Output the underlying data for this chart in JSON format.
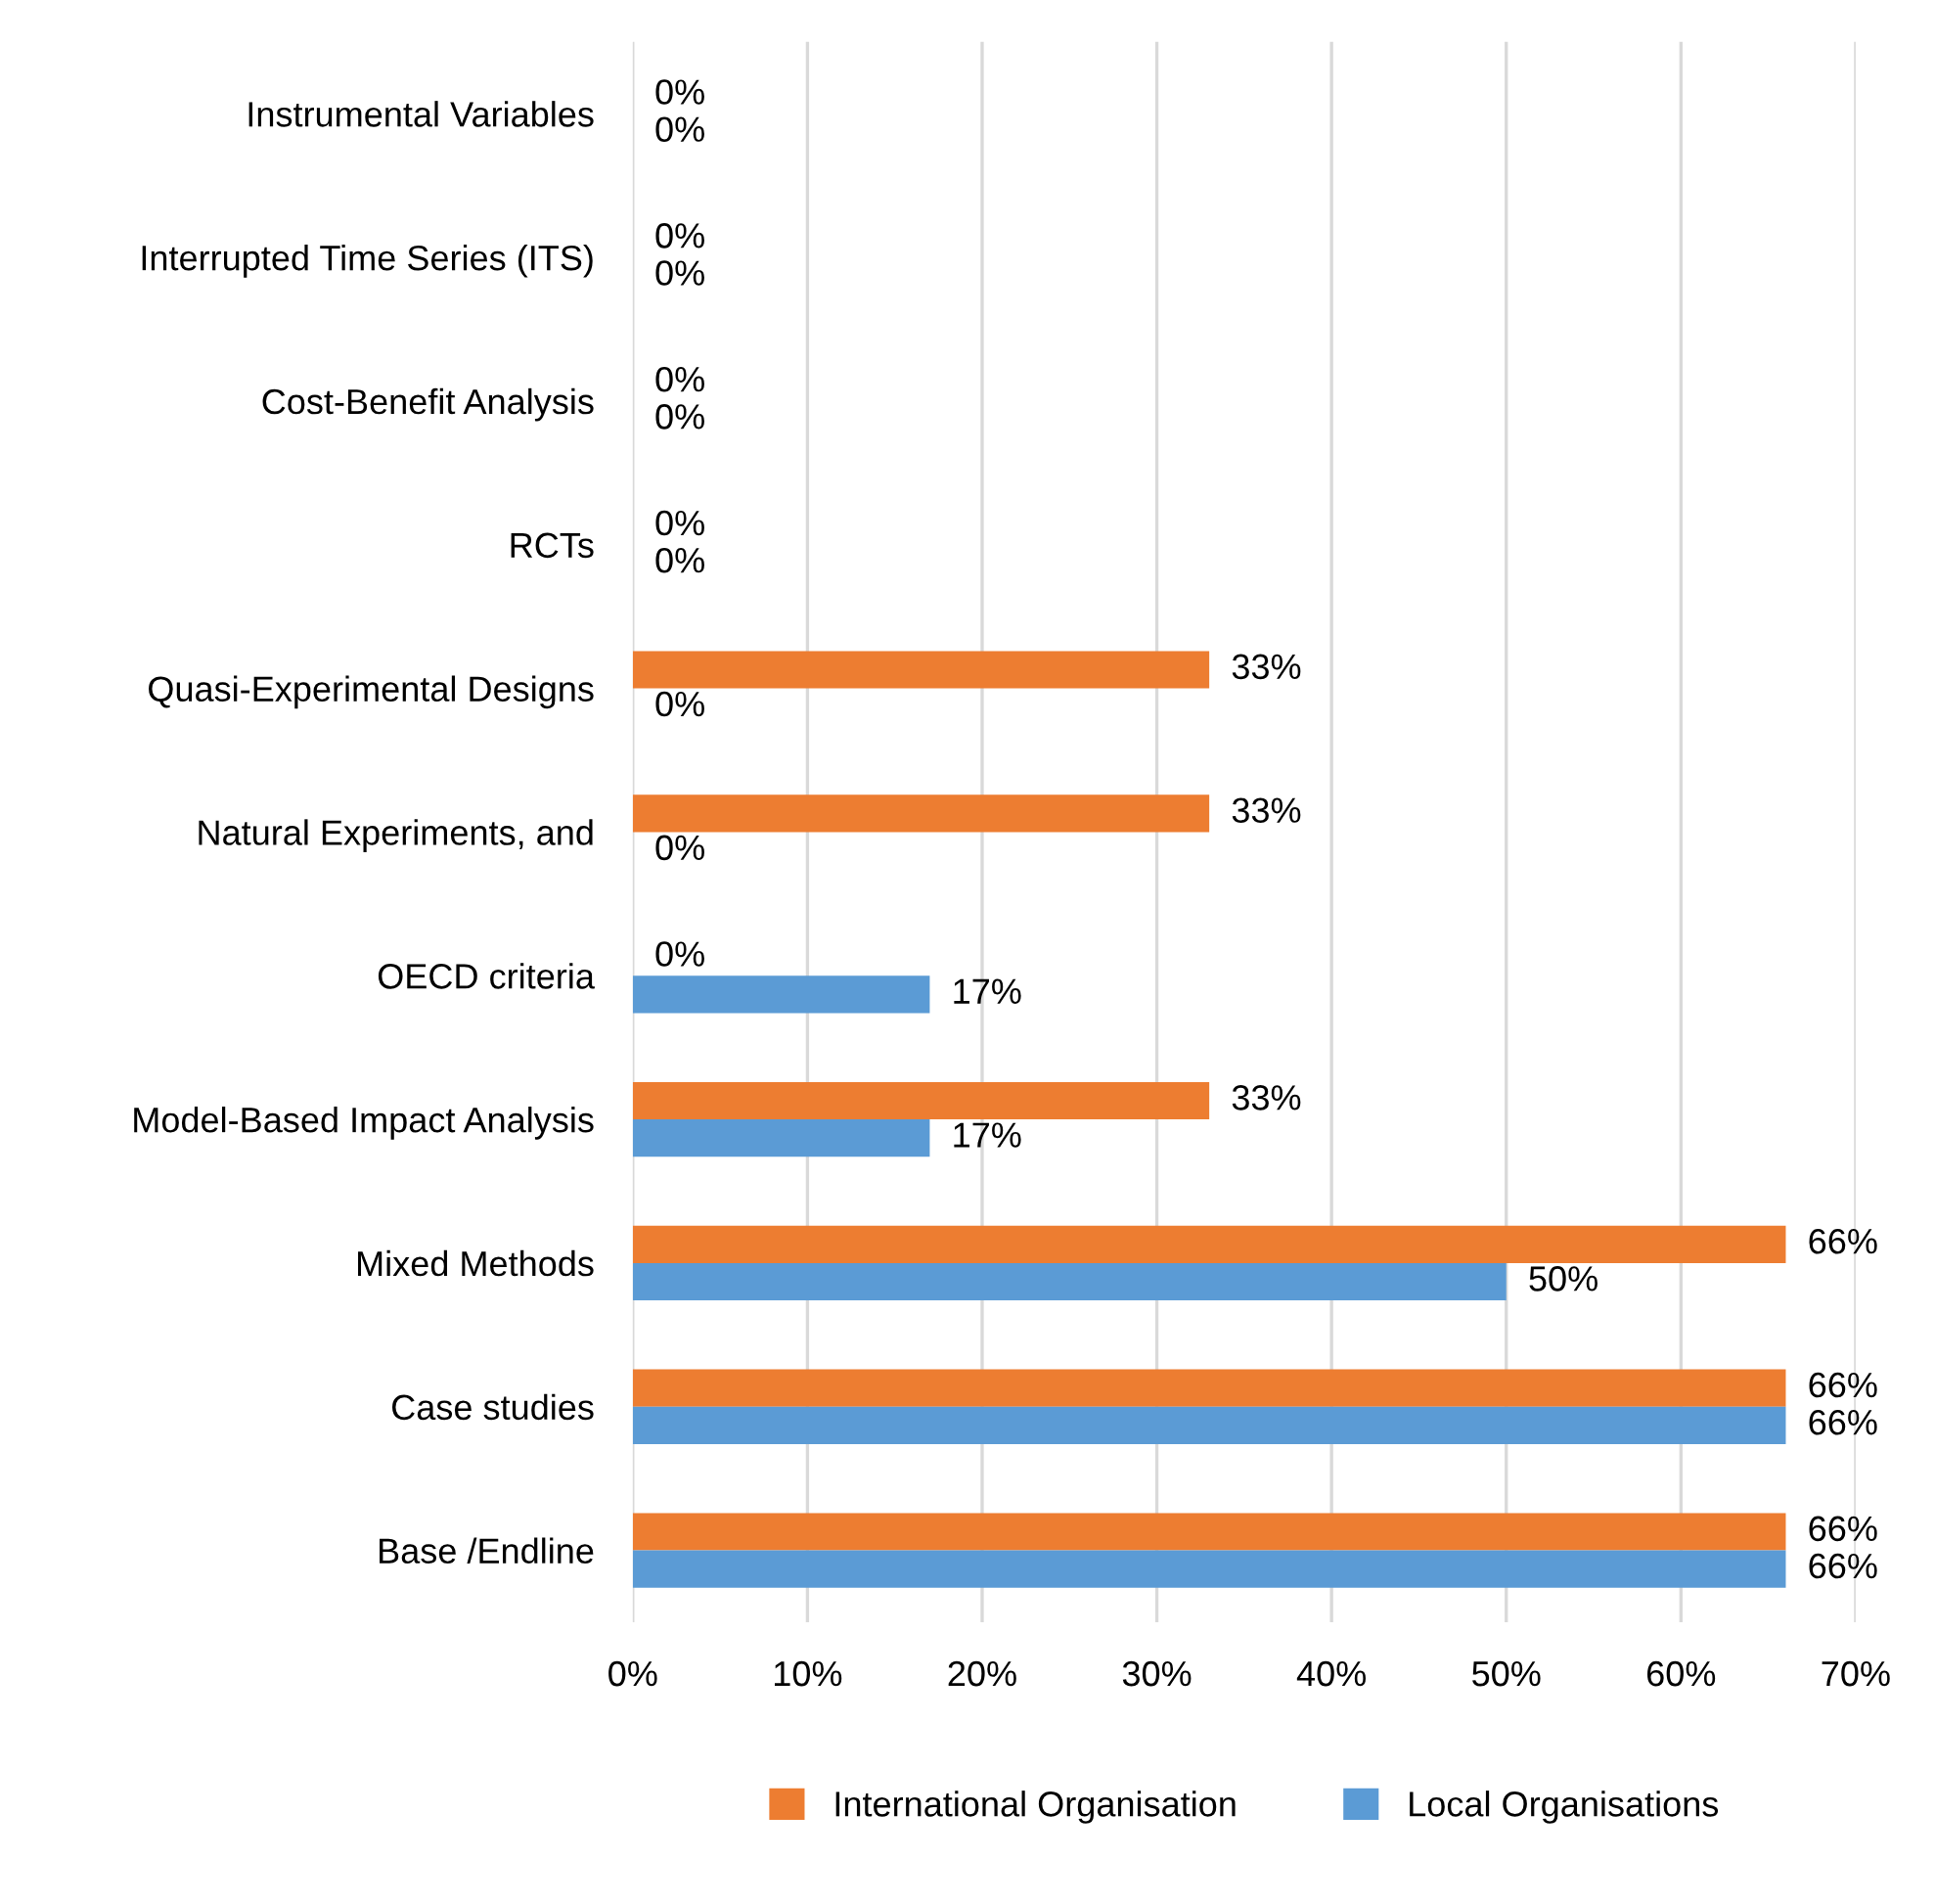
{
  "chart_data": {
    "type": "bar",
    "orientation": "horizontal",
    "categories": [
      "Instrumental Variables",
      "Interrupted Time Series (ITS)",
      "Cost-Benefit Analysis",
      "RCTs",
      "Quasi-Experimental Designs",
      "Natural Experiments, and",
      "OECD criteria",
      "Model-Based Impact Analysis",
      "Mixed Methods",
      "Case studies",
      "Base /Endline"
    ],
    "series": [
      {
        "name": "International Organisation",
        "color": "#ed7d31",
        "values": [
          0,
          0,
          0,
          0,
          33,
          33,
          0,
          33,
          66,
          66,
          66
        ],
        "value_labels": [
          "0%",
          "0%",
          "0%",
          "0%",
          "33%",
          "33%",
          "0%",
          "33%",
          "66%",
          "66%",
          "66%"
        ]
      },
      {
        "name": "Local Organisations",
        "color": "#5b9bd5",
        "values": [
          0,
          0,
          0,
          0,
          0,
          0,
          17,
          17,
          50,
          66,
          66
        ],
        "value_labels": [
          "0%",
          "0%",
          "0%",
          "0%",
          "0%",
          "0%",
          "17%",
          "17%",
          "50%",
          "66%",
          "66%"
        ]
      }
    ],
    "xlim": [
      0,
      70
    ],
    "xticks": [
      {
        "value": 0,
        "label": "0%"
      },
      {
        "value": 10,
        "label": "10%"
      },
      {
        "value": 20,
        "label": "20%"
      },
      {
        "value": 30,
        "label": "30%"
      },
      {
        "value": 40,
        "label": "40%"
      },
      {
        "value": 50,
        "label": "50%"
      },
      {
        "value": 60,
        "label": "60%"
      },
      {
        "value": 70,
        "label": "70%"
      }
    ],
    "grid": "x",
    "legend": "bottom"
  }
}
